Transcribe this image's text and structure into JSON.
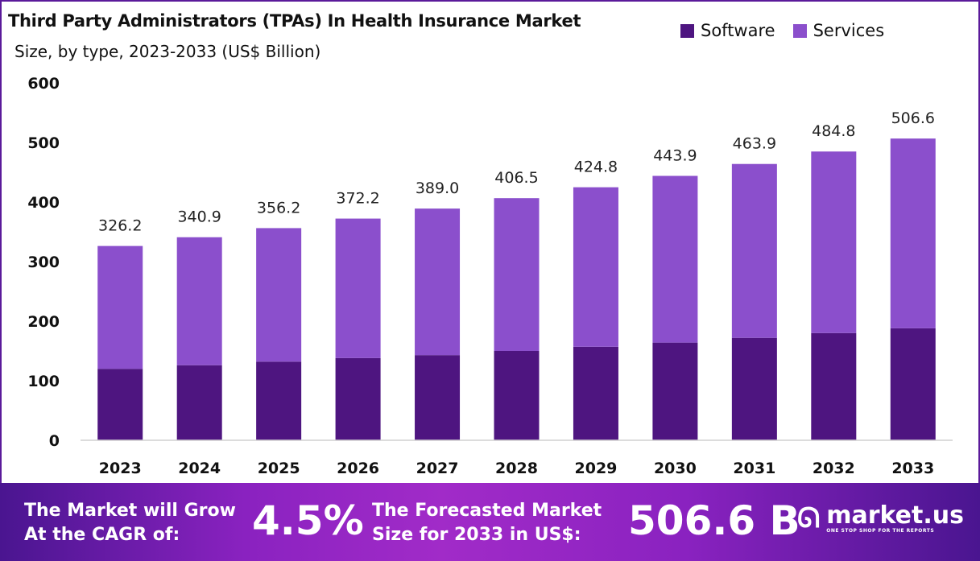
{
  "chart_data": {
    "type": "bar",
    "stacked": true,
    "title": "Third Party Administrators (TPAs) In Health Insurance Market",
    "subtitle": "Size, by type, 2023-2033 (US$ Billion)",
    "xlabel": "",
    "ylabel": "",
    "ylim": [
      0,
      600
    ],
    "yticks": [
      0,
      100,
      200,
      300,
      400,
      500,
      600
    ],
    "grid": false,
    "legend_position": "top-right",
    "categories": [
      "2023",
      "2024",
      "2025",
      "2026",
      "2027",
      "2028",
      "2029",
      "2030",
      "2031",
      "2032",
      "2033"
    ],
    "series": [
      {
        "name": "Software",
        "color": "#4E1580",
        "values": [
          120,
          126,
          132,
          138,
          143,
          150,
          157,
          164,
          172,
          180,
          188
        ]
      },
      {
        "name": "Services",
        "color": "#8B4FCC",
        "values": [
          206.2,
          214.9,
          224.2,
          234.2,
          246.0,
          256.5,
          267.8,
          279.9,
          291.9,
          304.8,
          318.6
        ]
      }
    ],
    "totals_labels": [
      "326.2",
      "340.9",
      "356.2",
      "372.2",
      "389.0",
      "406.5",
      "424.8",
      "443.9",
      "463.9",
      "484.8",
      "506.6"
    ]
  },
  "footer": {
    "cagr_text_line1": "The Market will Grow",
    "cagr_text_line2": "At the CAGR of:",
    "cagr_value": "4.5%",
    "forecast_text_line1": "The Forecasted Market",
    "forecast_text_line2": "Size for 2033 in US$:",
    "forecast_value": "506.6 B",
    "logo_text": "market.us",
    "logo_tagline": "ONE STOP SHOP FOR THE REPORTS"
  }
}
